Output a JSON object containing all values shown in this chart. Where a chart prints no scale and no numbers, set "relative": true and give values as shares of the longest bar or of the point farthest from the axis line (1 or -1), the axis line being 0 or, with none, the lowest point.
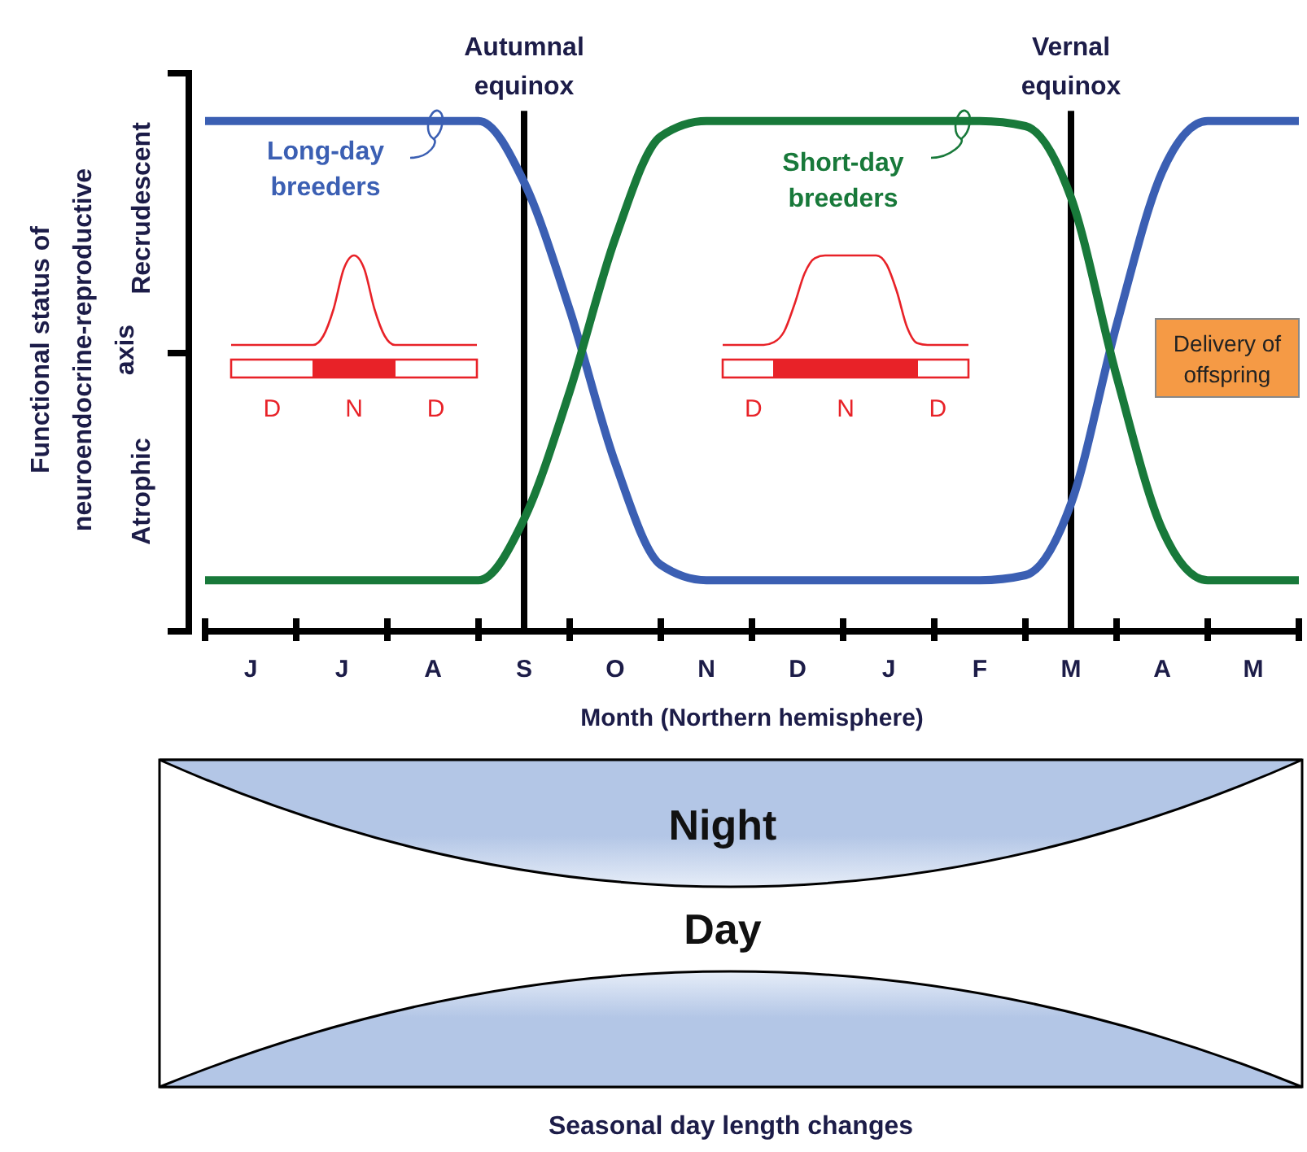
{
  "chart_data": [
    {
      "type": "line",
      "relative": true,
      "xlabel": "Month (Northern hemisphere)",
      "ylabel": "Functional status of neuroendocrine-reproductive axis",
      "categories": [
        null,
        "J",
        null,
        "J",
        null,
        "A",
        null,
        "S",
        null,
        "O",
        null,
        "N",
        null,
        "D",
        null,
        "J",
        null,
        "F",
        null,
        "M",
        null,
        "A",
        null,
        "M",
        null
      ],
      "line_style": "solid",
      "series": [
        {
          "name": "Long-day breeders",
          "color": "#3b5fb3",
          "values": [
            1,
            1,
            1,
            1,
            1,
            1,
            1,
            0.88,
            0.63,
            0.33,
            0.13,
            0.1,
            0.1,
            0.1,
            0.1,
            0.1,
            0.1,
            0.1,
            0.11,
            0.25,
            0.6,
            0.9,
            1,
            1,
            1
          ]
        },
        {
          "name": "Short-day breeders",
          "color": "#18793a",
          "values": [
            0.1,
            0.1,
            0.1,
            0.1,
            0.1,
            0.1,
            0.1,
            0.22,
            0.47,
            0.77,
            0.97,
            1,
            1,
            1,
            1,
            1,
            1,
            1,
            0.99,
            0.85,
            0.5,
            0.2,
            0.1,
            0.1,
            0.1
          ]
        }
      ],
      "ref_lines": [
        {
          "axis": "x",
          "value": "S",
          "label": "Autumnal equinox",
          "color": "#000000"
        },
        {
          "axis": "x",
          "value": "M",
          "label": "Vernal equinox",
          "color": "#000000"
        }
      ],
      "annotations": [
        "Recrudescent",
        "Atrophic",
        "Delivery of offspring"
      ]
    },
    {
      "type": "line",
      "relative": true,
      "categories": [
        null,
        null,
        null,
        null,
        "D",
        null,
        null,
        null,
        null,
        null,
        null,
        null,
        "N",
        null,
        null,
        null,
        null,
        null,
        null,
        null,
        "D",
        null,
        null,
        null,
        null
      ],
      "series": [
        {
          "color": "#e82228",
          "values": [
            0,
            0,
            0,
            0,
            0,
            0,
            0,
            0,
            0,
            0.1,
            0.4,
            0.85,
            1,
            0.85,
            0.4,
            0.1,
            0,
            0,
            0,
            0,
            0,
            0,
            0,
            0,
            0
          ]
        }
      ]
    },
    {
      "type": "line",
      "relative": true,
      "categories": [
        null,
        null,
        null,
        "D",
        null,
        null,
        null,
        null,
        null,
        null,
        null,
        null,
        "N",
        null,
        null,
        null,
        null,
        null,
        null,
        null,
        null,
        "D",
        null,
        null,
        null
      ],
      "series": [
        {
          "color": "#e82228",
          "values": [
            0,
            0,
            0,
            0,
            0,
            0.03,
            0.15,
            0.45,
            0.8,
            0.97,
            1,
            1,
            1,
            1,
            1,
            1,
            0.9,
            0.6,
            0.2,
            0.02,
            0,
            0,
            0,
            0,
            0
          ]
        }
      ]
    },
    {
      "type": "other",
      "title": "Seasonal day length changes",
      "annotations": [
        "Night",
        "Day"
      ]
    }
  ]
}
